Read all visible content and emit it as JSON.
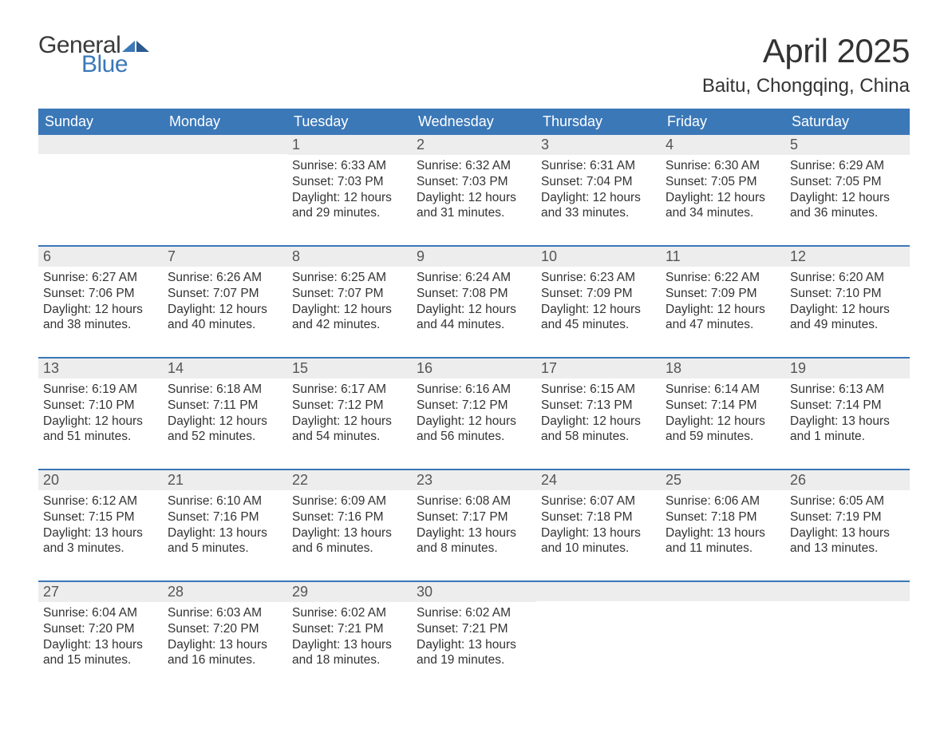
{
  "brand": {
    "text_general": "General",
    "text_blue": "Blue",
    "logo_fill": "#3b78b8",
    "logo_dark": "#3a3a3a"
  },
  "title": {
    "month": "April 2025",
    "location": "Baitu, Chongqing, China",
    "title_fontsize": 42,
    "location_fontsize": 24,
    "title_color": "#333333"
  },
  "styling": {
    "header_bg": "#3b78b8",
    "header_text": "#ffffff",
    "daynum_bg": "#ededed",
    "daynum_color": "#555555",
    "body_text": "#333333",
    "week_divider": "#3b78b8",
    "background": "#ffffff",
    "body_fontsize": 15.5,
    "header_fontsize": 18,
    "daynum_fontsize": 18
  },
  "day_names": [
    "Sunday",
    "Monday",
    "Tuesday",
    "Wednesday",
    "Thursday",
    "Friday",
    "Saturday"
  ],
  "weeks": [
    [
      {
        "day": "",
        "sunrise": "",
        "sunset": "",
        "daylight1": "",
        "daylight2": ""
      },
      {
        "day": "",
        "sunrise": "",
        "sunset": "",
        "daylight1": "",
        "daylight2": ""
      },
      {
        "day": "1",
        "sunrise": "Sunrise: 6:33 AM",
        "sunset": "Sunset: 7:03 PM",
        "daylight1": "Daylight: 12 hours",
        "daylight2": "and 29 minutes."
      },
      {
        "day": "2",
        "sunrise": "Sunrise: 6:32 AM",
        "sunset": "Sunset: 7:03 PM",
        "daylight1": "Daylight: 12 hours",
        "daylight2": "and 31 minutes."
      },
      {
        "day": "3",
        "sunrise": "Sunrise: 6:31 AM",
        "sunset": "Sunset: 7:04 PM",
        "daylight1": "Daylight: 12 hours",
        "daylight2": "and 33 minutes."
      },
      {
        "day": "4",
        "sunrise": "Sunrise: 6:30 AM",
        "sunset": "Sunset: 7:05 PM",
        "daylight1": "Daylight: 12 hours",
        "daylight2": "and 34 minutes."
      },
      {
        "day": "5",
        "sunrise": "Sunrise: 6:29 AM",
        "sunset": "Sunset: 7:05 PM",
        "daylight1": "Daylight: 12 hours",
        "daylight2": "and 36 minutes."
      }
    ],
    [
      {
        "day": "6",
        "sunrise": "Sunrise: 6:27 AM",
        "sunset": "Sunset: 7:06 PM",
        "daylight1": "Daylight: 12 hours",
        "daylight2": "and 38 minutes."
      },
      {
        "day": "7",
        "sunrise": "Sunrise: 6:26 AM",
        "sunset": "Sunset: 7:07 PM",
        "daylight1": "Daylight: 12 hours",
        "daylight2": "and 40 minutes."
      },
      {
        "day": "8",
        "sunrise": "Sunrise: 6:25 AM",
        "sunset": "Sunset: 7:07 PM",
        "daylight1": "Daylight: 12 hours",
        "daylight2": "and 42 minutes."
      },
      {
        "day": "9",
        "sunrise": "Sunrise: 6:24 AM",
        "sunset": "Sunset: 7:08 PM",
        "daylight1": "Daylight: 12 hours",
        "daylight2": "and 44 minutes."
      },
      {
        "day": "10",
        "sunrise": "Sunrise: 6:23 AM",
        "sunset": "Sunset: 7:09 PM",
        "daylight1": "Daylight: 12 hours",
        "daylight2": "and 45 minutes."
      },
      {
        "day": "11",
        "sunrise": "Sunrise: 6:22 AM",
        "sunset": "Sunset: 7:09 PM",
        "daylight1": "Daylight: 12 hours",
        "daylight2": "and 47 minutes."
      },
      {
        "day": "12",
        "sunrise": "Sunrise: 6:20 AM",
        "sunset": "Sunset: 7:10 PM",
        "daylight1": "Daylight: 12 hours",
        "daylight2": "and 49 minutes."
      }
    ],
    [
      {
        "day": "13",
        "sunrise": "Sunrise: 6:19 AM",
        "sunset": "Sunset: 7:10 PM",
        "daylight1": "Daylight: 12 hours",
        "daylight2": "and 51 minutes."
      },
      {
        "day": "14",
        "sunrise": "Sunrise: 6:18 AM",
        "sunset": "Sunset: 7:11 PM",
        "daylight1": "Daylight: 12 hours",
        "daylight2": "and 52 minutes."
      },
      {
        "day": "15",
        "sunrise": "Sunrise: 6:17 AM",
        "sunset": "Sunset: 7:12 PM",
        "daylight1": "Daylight: 12 hours",
        "daylight2": "and 54 minutes."
      },
      {
        "day": "16",
        "sunrise": "Sunrise: 6:16 AM",
        "sunset": "Sunset: 7:12 PM",
        "daylight1": "Daylight: 12 hours",
        "daylight2": "and 56 minutes."
      },
      {
        "day": "17",
        "sunrise": "Sunrise: 6:15 AM",
        "sunset": "Sunset: 7:13 PM",
        "daylight1": "Daylight: 12 hours",
        "daylight2": "and 58 minutes."
      },
      {
        "day": "18",
        "sunrise": "Sunrise: 6:14 AM",
        "sunset": "Sunset: 7:14 PM",
        "daylight1": "Daylight: 12 hours",
        "daylight2": "and 59 minutes."
      },
      {
        "day": "19",
        "sunrise": "Sunrise: 6:13 AM",
        "sunset": "Sunset: 7:14 PM",
        "daylight1": "Daylight: 13 hours",
        "daylight2": "and 1 minute."
      }
    ],
    [
      {
        "day": "20",
        "sunrise": "Sunrise: 6:12 AM",
        "sunset": "Sunset: 7:15 PM",
        "daylight1": "Daylight: 13 hours",
        "daylight2": "and 3 minutes."
      },
      {
        "day": "21",
        "sunrise": "Sunrise: 6:10 AM",
        "sunset": "Sunset: 7:16 PM",
        "daylight1": "Daylight: 13 hours",
        "daylight2": "and 5 minutes."
      },
      {
        "day": "22",
        "sunrise": "Sunrise: 6:09 AM",
        "sunset": "Sunset: 7:16 PM",
        "daylight1": "Daylight: 13 hours",
        "daylight2": "and 6 minutes."
      },
      {
        "day": "23",
        "sunrise": "Sunrise: 6:08 AM",
        "sunset": "Sunset: 7:17 PM",
        "daylight1": "Daylight: 13 hours",
        "daylight2": "and 8 minutes."
      },
      {
        "day": "24",
        "sunrise": "Sunrise: 6:07 AM",
        "sunset": "Sunset: 7:18 PM",
        "daylight1": "Daylight: 13 hours",
        "daylight2": "and 10 minutes."
      },
      {
        "day": "25",
        "sunrise": "Sunrise: 6:06 AM",
        "sunset": "Sunset: 7:18 PM",
        "daylight1": "Daylight: 13 hours",
        "daylight2": "and 11 minutes."
      },
      {
        "day": "26",
        "sunrise": "Sunrise: 6:05 AM",
        "sunset": "Sunset: 7:19 PM",
        "daylight1": "Daylight: 13 hours",
        "daylight2": "and 13 minutes."
      }
    ],
    [
      {
        "day": "27",
        "sunrise": "Sunrise: 6:04 AM",
        "sunset": "Sunset: 7:20 PM",
        "daylight1": "Daylight: 13 hours",
        "daylight2": "and 15 minutes."
      },
      {
        "day": "28",
        "sunrise": "Sunrise: 6:03 AM",
        "sunset": "Sunset: 7:20 PM",
        "daylight1": "Daylight: 13 hours",
        "daylight2": "and 16 minutes."
      },
      {
        "day": "29",
        "sunrise": "Sunrise: 6:02 AM",
        "sunset": "Sunset: 7:21 PM",
        "daylight1": "Daylight: 13 hours",
        "daylight2": "and 18 minutes."
      },
      {
        "day": "30",
        "sunrise": "Sunrise: 6:02 AM",
        "sunset": "Sunset: 7:21 PM",
        "daylight1": "Daylight: 13 hours",
        "daylight2": "and 19 minutes."
      },
      {
        "day": "",
        "sunrise": "",
        "sunset": "",
        "daylight1": "",
        "daylight2": ""
      },
      {
        "day": "",
        "sunrise": "",
        "sunset": "",
        "daylight1": "",
        "daylight2": ""
      },
      {
        "day": "",
        "sunrise": "",
        "sunset": "",
        "daylight1": "",
        "daylight2": ""
      }
    ]
  ]
}
